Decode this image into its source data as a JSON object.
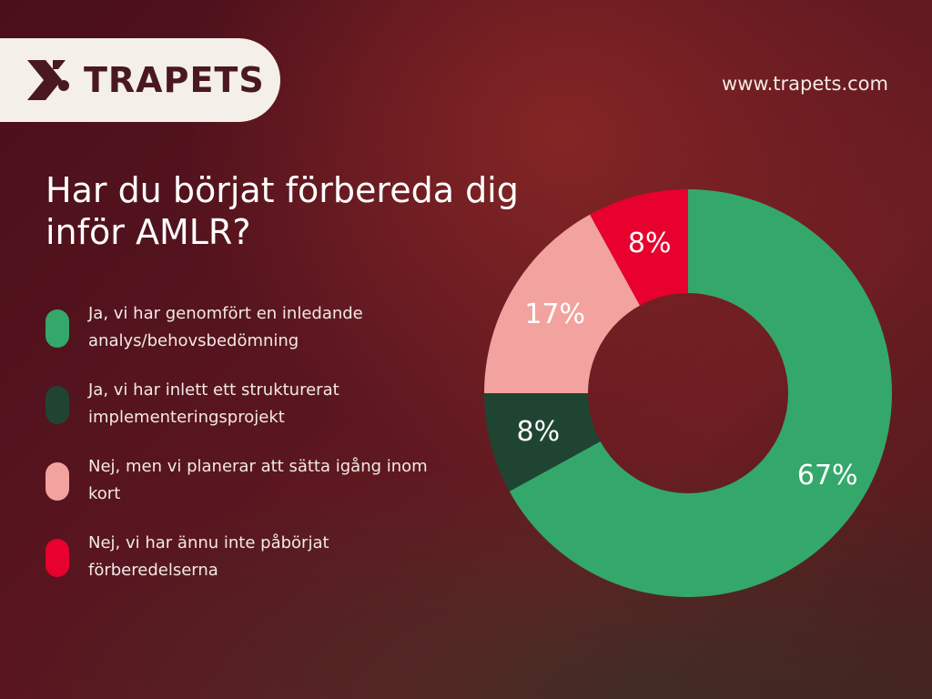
{
  "brand": {
    "name": "TRAPETS",
    "website": "www.trapets.com",
    "logo_icon": "trapets-logo-icon"
  },
  "title": "Har du börjat förbereda dig inför AMLR?",
  "colors": {
    "green": "#34a86a",
    "dark_green": "#1f4532",
    "pink": "#f2a39f",
    "red": "#e8002e",
    "brand_text": "#4a1820"
  },
  "chart_data": {
    "type": "pie",
    "donut": true,
    "title": "Har du börjat förbereda dig inför AMLR?",
    "legend_position": "left",
    "series": [
      {
        "name": "Ja, vi har genomfört en inledande analys/behovsbedömning",
        "value": 67,
        "label": "67%",
        "color": "#34a86a"
      },
      {
        "name": "Ja, vi har inlett ett strukturerat implementeringsprojekt",
        "value": 8,
        "label": "8%",
        "color": "#1f4532"
      },
      {
        "name": "Nej, men vi planerar att sätta igång inom kort",
        "value": 17,
        "label": "17%",
        "color": "#f2a39f"
      },
      {
        "name": "Nej, vi har ännu inte påbörjat förberedelserna",
        "value": 8,
        "label": "8%",
        "color": "#e8002e"
      }
    ]
  }
}
